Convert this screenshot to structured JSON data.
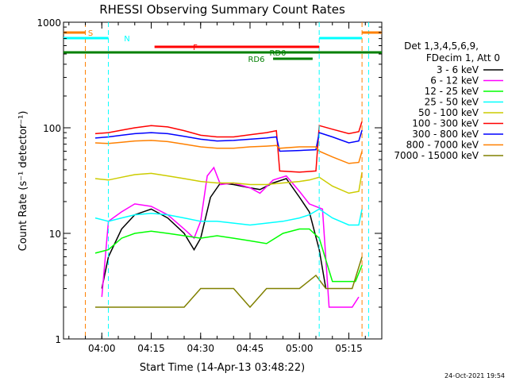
{
  "chart_data": {
    "type": "line",
    "title": "RHESSI Observing Summary Count Rates",
    "xlabel": "Start Time (14-Apr-13 03:48:22)",
    "ylabel": "Count Rate (s⁻¹ detector⁻¹)",
    "y_scale": "log",
    "ylim": [
      1,
      1000
    ],
    "xlim": [
      "03:48:22",
      "05:25:00"
    ],
    "x_ticks": [
      "04:00",
      "04:15",
      "04:30",
      "04:45",
      "05:00",
      "05:15"
    ],
    "y_ticks": [
      "1",
      "10",
      "100",
      "1000"
    ],
    "footer": "24-Oct-2021 19:54",
    "legend": {
      "header_line1": "Det 1,3,4,5,6,9,",
      "header_line2": "FDecim 1, Att 0",
      "placement": "right"
    },
    "series": [
      {
        "name": "3 - 6 keV",
        "color": "#000000",
        "points": [
          [
            "04:00",
            3
          ],
          [
            "04:02",
            6
          ],
          [
            "04:06",
            11
          ],
          [
            "04:10",
            15
          ],
          [
            "04:15",
            17
          ],
          [
            "04:20",
            14
          ],
          [
            "04:25",
            10
          ],
          [
            "04:28",
            7
          ],
          [
            "04:30",
            9
          ],
          [
            "04:33",
            22
          ],
          [
            "04:36",
            30
          ],
          [
            "04:40",
            29
          ],
          [
            "04:45",
            27
          ],
          [
            "04:48",
            26
          ],
          [
            "04:52",
            30
          ],
          [
            "04:56",
            33
          ],
          [
            "05:00",
            22
          ],
          [
            "05:03",
            16
          ],
          [
            "05:06",
            7
          ],
          [
            "05:08",
            3
          ]
        ]
      },
      {
        "name": "6 - 12 keV",
        "color": "#ff00ff",
        "points": [
          [
            "04:00",
            2.5
          ],
          [
            "04:02",
            13
          ],
          [
            "04:06",
            16
          ],
          [
            "04:10",
            19
          ],
          [
            "04:15",
            18
          ],
          [
            "04:20",
            15
          ],
          [
            "04:25",
            11
          ],
          [
            "04:28",
            9
          ],
          [
            "04:30",
            13
          ],
          [
            "04:32",
            35
          ],
          [
            "04:34",
            42
          ],
          [
            "04:36",
            29
          ],
          [
            "04:40",
            30
          ],
          [
            "04:45",
            27
          ],
          [
            "04:48",
            24
          ],
          [
            "04:52",
            32
          ],
          [
            "04:56",
            35
          ],
          [
            "05:00",
            25
          ],
          [
            "05:03",
            19
          ],
          [
            "05:07",
            17
          ],
          [
            "05:09",
            2
          ],
          [
            "05:16",
            2
          ],
          [
            "05:18",
            2.5
          ]
        ]
      },
      {
        "name": "12 - 25 keV",
        "color": "#00ff00",
        "points": [
          [
            "03:58",
            6.5
          ],
          [
            "04:02",
            7
          ],
          [
            "04:06",
            9
          ],
          [
            "04:10",
            10
          ],
          [
            "04:15",
            10.5
          ],
          [
            "04:20",
            10
          ],
          [
            "04:25",
            9.5
          ],
          [
            "04:30",
            9
          ],
          [
            "04:35",
            9.5
          ],
          [
            "04:40",
            9
          ],
          [
            "04:45",
            8.5
          ],
          [
            "04:50",
            8
          ],
          [
            "04:55",
            10
          ],
          [
            "05:00",
            11
          ],
          [
            "05:03",
            11
          ],
          [
            "05:06",
            9
          ],
          [
            "05:10",
            3.5
          ],
          [
            "05:17",
            3.5
          ],
          [
            "05:19",
            5
          ]
        ]
      },
      {
        "name": "25 - 50 keV",
        "color": "#00ffff",
        "points": [
          [
            "03:58",
            14
          ],
          [
            "04:02",
            13
          ],
          [
            "04:06",
            14
          ],
          [
            "04:10",
            15
          ],
          [
            "04:15",
            15.5
          ],
          [
            "04:20",
            15
          ],
          [
            "04:25",
            14
          ],
          [
            "04:30",
            13
          ],
          [
            "04:35",
            13
          ],
          [
            "04:40",
            12.5
          ],
          [
            "04:45",
            12
          ],
          [
            "04:50",
            12.5
          ],
          [
            "04:55",
            13
          ],
          [
            "05:00",
            14
          ],
          [
            "05:03",
            15
          ],
          [
            "05:06",
            17
          ],
          [
            "05:10",
            14
          ],
          [
            "05:15",
            12
          ],
          [
            "05:18",
            12
          ],
          [
            "05:19",
            17
          ]
        ]
      },
      {
        "name": "50 - 100 keV",
        "color": "#cccc00",
        "points": [
          [
            "03:58",
            33
          ],
          [
            "04:02",
            32
          ],
          [
            "04:06",
            34
          ],
          [
            "04:10",
            36
          ],
          [
            "04:15",
            37
          ],
          [
            "04:20",
            35
          ],
          [
            "04:25",
            33
          ],
          [
            "04:30",
            31
          ],
          [
            "04:35",
            30
          ],
          [
            "04:40",
            30
          ],
          [
            "04:45",
            29
          ],
          [
            "04:50",
            29
          ],
          [
            "04:55",
            30
          ],
          [
            "05:00",
            31
          ],
          [
            "05:03",
            32
          ],
          [
            "05:06",
            34
          ],
          [
            "05:10",
            28
          ],
          [
            "05:15",
            24
          ],
          [
            "05:18",
            25
          ],
          [
            "05:19",
            38
          ]
        ]
      },
      {
        "name": "100 - 300 keV",
        "color": "#ff0000",
        "points": [
          [
            "03:58",
            88
          ],
          [
            "04:02",
            90
          ],
          [
            "04:06",
            95
          ],
          [
            "04:10",
            100
          ],
          [
            "04:15",
            105
          ],
          [
            "04:20",
            102
          ],
          [
            "04:25",
            94
          ],
          [
            "04:30",
            85
          ],
          [
            "04:35",
            82
          ],
          [
            "04:40",
            82
          ],
          [
            "04:45",
            86
          ],
          [
            "04:50",
            90
          ],
          [
            "04:53",
            94
          ],
          [
            "04:54",
            39
          ],
          [
            "05:00",
            38
          ],
          [
            "05:05",
            39
          ],
          [
            "05:06",
            105
          ],
          [
            "05:10",
            97
          ],
          [
            "05:15",
            88
          ],
          [
            "05:18",
            92
          ],
          [
            "05:19",
            115
          ]
        ]
      },
      {
        "name": "300 - 800 keV",
        "color": "#0000ff",
        "points": [
          [
            "03:58",
            80
          ],
          [
            "04:02",
            82
          ],
          [
            "04:06",
            85
          ],
          [
            "04:10",
            88
          ],
          [
            "04:15",
            90
          ],
          [
            "04:20",
            88
          ],
          [
            "04:25",
            83
          ],
          [
            "04:30",
            78
          ],
          [
            "04:35",
            75
          ],
          [
            "04:40",
            76
          ],
          [
            "04:45",
            78
          ],
          [
            "04:50",
            80
          ],
          [
            "04:53",
            82
          ],
          [
            "04:54",
            60
          ],
          [
            "05:00",
            61
          ],
          [
            "05:05",
            62
          ],
          [
            "05:06",
            90
          ],
          [
            "05:10",
            82
          ],
          [
            "05:15",
            72
          ],
          [
            "05:18",
            75
          ],
          [
            "05:19",
            95
          ]
        ]
      },
      {
        "name": "800 - 7000 keV",
        "color": "#ff8000",
        "points": [
          [
            "03:58",
            72
          ],
          [
            "04:02",
            71
          ],
          [
            "04:06",
            73
          ],
          [
            "04:10",
            75
          ],
          [
            "04:15",
            76
          ],
          [
            "04:20",
            74
          ],
          [
            "04:25",
            70
          ],
          [
            "04:30",
            66
          ],
          [
            "04:35",
            64
          ],
          [
            "04:40",
            64
          ],
          [
            "04:45",
            66
          ],
          [
            "04:50",
            67
          ],
          [
            "04:53",
            68
          ],
          [
            "04:54",
            64
          ],
          [
            "05:00",
            66
          ],
          [
            "05:05",
            66
          ],
          [
            "05:06",
            60
          ],
          [
            "05:10",
            53
          ],
          [
            "05:15",
            46
          ],
          [
            "05:18",
            47
          ],
          [
            "05:19",
            60
          ]
        ]
      },
      {
        "name": "7000 - 15000 keV",
        "color": "#808000",
        "points": [
          [
            "03:58",
            2
          ],
          [
            "04:02",
            2
          ],
          [
            "04:06",
            2
          ],
          [
            "04:10",
            2
          ],
          [
            "04:15",
            2
          ],
          [
            "04:20",
            2
          ],
          [
            "04:25",
            2
          ],
          [
            "04:30",
            3
          ],
          [
            "04:35",
            3
          ],
          [
            "04:40",
            3
          ],
          [
            "04:45",
            2
          ],
          [
            "04:50",
            3
          ],
          [
            "04:55",
            3
          ],
          [
            "05:00",
            3
          ],
          [
            "05:05",
            4
          ],
          [
            "05:08",
            3
          ],
          [
            "05:12",
            3
          ],
          [
            "05:16",
            3
          ],
          [
            "05:19",
            6
          ]
        ]
      }
    ],
    "annotations": [
      {
        "label": "S",
        "color": "#ff8000",
        "segments": [
          [
            "03:48:22",
            "03:55"
          ],
          [
            "05:19",
            "05:25"
          ]
        ]
      },
      {
        "label": "N",
        "color": "#00ffff",
        "segments": [
          [
            "03:48:22",
            "04:02"
          ],
          [
            "05:06",
            "05:19"
          ]
        ]
      },
      {
        "label": "F",
        "color": "#ff0000",
        "segments": [
          [
            "04:16",
            "05:06"
          ]
        ]
      },
      {
        "label": "RD0",
        "color": "#008000",
        "segments": [
          [
            "03:48:22",
            "05:25"
          ]
        ]
      },
      {
        "label": "RD6",
        "color": "#008000",
        "segments": [
          [
            "04:52",
            "05:04"
          ]
        ]
      }
    ],
    "vertical_markers": [
      {
        "time": "03:55",
        "color": "#ff8000"
      },
      {
        "time": "04:02",
        "color": "#00ffff"
      },
      {
        "time": "05:06",
        "color": "#00ffff"
      },
      {
        "time": "05:19",
        "color": "#ff8000"
      },
      {
        "time": "05:21",
        "color": "#00ffff"
      }
    ]
  }
}
